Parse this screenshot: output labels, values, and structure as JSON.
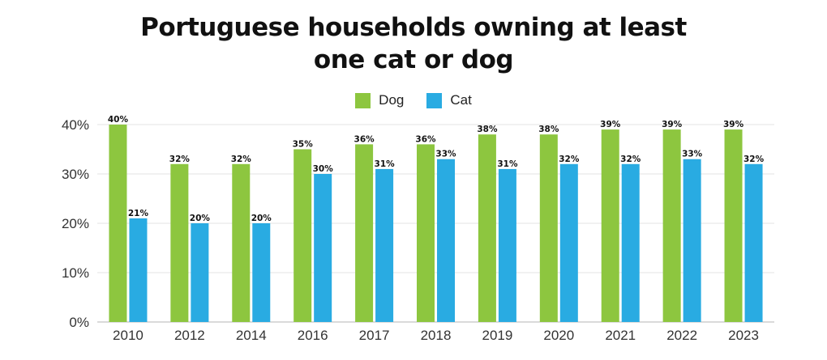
{
  "chart_data": {
    "type": "bar",
    "title_lines": [
      "Portuguese households owning at least",
      "one cat or dog"
    ],
    "categories": [
      "2010",
      "2012",
      "2014",
      "2016",
      "2017",
      "2018",
      "2019",
      "2020",
      "2021",
      "2022",
      "2023"
    ],
    "series": [
      {
        "name": "Dog",
        "color": "#8dc63f",
        "values": [
          40,
          32,
          32,
          35,
          36,
          36,
          38,
          38,
          39,
          39,
          39
        ],
        "labels": [
          "40%",
          "32%",
          "32%",
          "35%",
          "36%",
          "36%",
          "38%",
          "38%",
          "39%",
          "39%",
          "39%"
        ]
      },
      {
        "name": "Cat",
        "color": "#29abe2",
        "values": [
          21,
          20,
          20,
          30,
          31,
          33,
          31,
          32,
          32,
          33,
          32
        ],
        "labels": [
          "21%",
          "20%",
          "20%",
          "30%",
          "31%",
          "33%",
          "31%",
          "32%",
          "32%",
          "33%",
          "32%"
        ]
      }
    ],
    "ylim": [
      0,
      40
    ],
    "yticks": [
      0,
      10,
      20,
      30,
      40
    ],
    "ytick_labels": [
      "0%",
      "10%",
      "20%",
      "30%",
      "40%"
    ],
    "grid": true,
    "legend_position": "top-center"
  }
}
